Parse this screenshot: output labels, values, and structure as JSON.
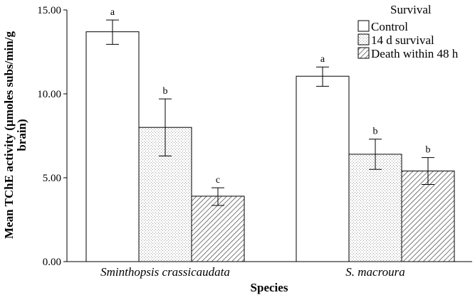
{
  "chart_data": {
    "type": "bar",
    "xlabel": "Species",
    "ylabel": "Mean TChE activity (µmoles subs/min/g brain)",
    "ylabel_lines": [
      "Mean TChE activity (µmoles subs/min/g",
      "brain)"
    ],
    "categories": [
      "Sminthopsis crassicaudata",
      "S. macroura"
    ],
    "ylim": [
      0,
      15
    ],
    "yticks": [
      0,
      5,
      10,
      15
    ],
    "ytick_labels": [
      "0.00",
      "5.00",
      "10.00",
      "15.00"
    ],
    "legend": {
      "title": "Survival",
      "position": "top-right"
    },
    "grid": false,
    "series": [
      {
        "name": "Control",
        "pattern": "none",
        "values": [
          13.7,
          11.05
        ],
        "error_low": [
          12.95,
          10.45
        ],
        "error_high": [
          14.4,
          11.6
        ],
        "letters": [
          "a",
          "a"
        ]
      },
      {
        "name": "14 d survival",
        "pattern": "dots",
        "values": [
          8.0,
          6.4
        ],
        "error_low": [
          6.3,
          5.5
        ],
        "error_high": [
          9.7,
          7.3
        ],
        "letters": [
          "b",
          "b"
        ]
      },
      {
        "name": "Death within 48 h",
        "pattern": "hatch",
        "values": [
          3.9,
          5.4
        ],
        "error_low": [
          3.35,
          4.6
        ],
        "error_high": [
          4.4,
          6.2
        ],
        "letters": [
          "c",
          "b"
        ]
      }
    ]
  }
}
